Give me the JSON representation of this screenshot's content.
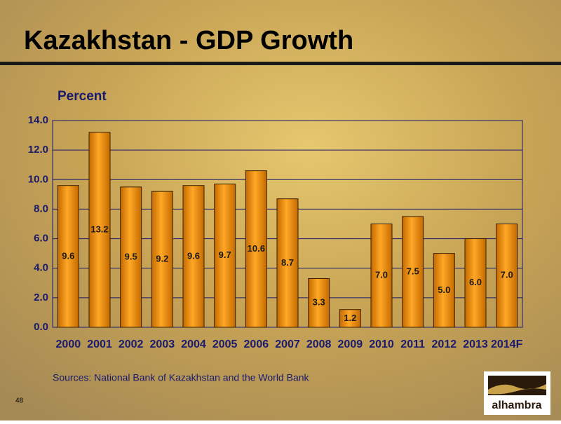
{
  "chart_data": {
    "type": "bar",
    "title": "Kazakhstan - GDP Growth",
    "y_label": "Percent",
    "categories": [
      "2000",
      "2001",
      "2002",
      "2003",
      "2004",
      "2005",
      "2006",
      "2007",
      "2008",
      "2009",
      "2010",
      "2011",
      "2012",
      "2013",
      "2014F"
    ],
    "values": [
      9.6,
      13.2,
      9.5,
      9.2,
      9.6,
      9.7,
      10.6,
      8.7,
      3.3,
      1.2,
      7.0,
      7.5,
      5.0,
      6.0,
      7.0
    ],
    "value_labels": [
      "9.6",
      "13.2",
      "9.5",
      "9.2",
      "9.6",
      "9.7",
      "10.6",
      "8.7",
      "3.3",
      "1.2",
      "7.0",
      "7.5",
      "5.0",
      "6.0",
      "7.0"
    ],
    "color": "#e8900c",
    "ylim": [
      0,
      14
    ],
    "yticks": [
      {
        "value": 0,
        "label": "0.0"
      },
      {
        "value": 2,
        "label": "2.0"
      },
      {
        "value": 4,
        "label": "4.0"
      },
      {
        "value": 6,
        "label": "6.0"
      },
      {
        "value": 8,
        "label": "8.0"
      },
      {
        "value": 10,
        "label": "10.0"
      },
      {
        "value": 12,
        "label": "12.0"
      },
      {
        "value": 14,
        "label": "14.0"
      }
    ],
    "grid": true
  },
  "footer": {
    "source": "Sources: National Bank of Kazakhstan and the World Bank",
    "page_number": "48",
    "logo": "alhambra"
  }
}
